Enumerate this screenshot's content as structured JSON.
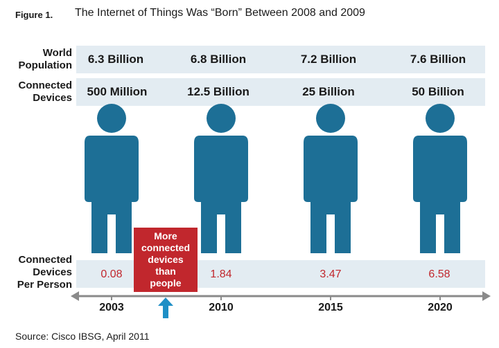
{
  "figure": {
    "label": "Figure 1.",
    "title": "The Internet of Things Was “Born” Between 2008 and 2009"
  },
  "rows": {
    "population_label": [
      "World",
      "Population"
    ],
    "devices_label": [
      "Connected",
      "Devices"
    ],
    "per_person_label": [
      "Connected",
      "Devices",
      "Per Person"
    ]
  },
  "columns": [
    {
      "year": "2003",
      "population": "6.3 Billion",
      "devices": "500 Million",
      "per_person": "0.08"
    },
    {
      "year": "2010",
      "population": "6.8 Billion",
      "devices": "12.5 Billion",
      "per_person": "1.84"
    },
    {
      "year": "2015",
      "population": "7.2 Billion",
      "devices": "25 Billion",
      "per_person": "3.47"
    },
    {
      "year": "2020",
      "population": "7.6 Billion",
      "devices": "50 Billion",
      "per_person": "6.58"
    }
  ],
  "callout": [
    "More",
    "connected",
    "devices",
    "than",
    "people"
  ],
  "source": "Source: Cisco IBSG, April 2011",
  "colors": {
    "person": "#1d6f96",
    "band": "#e3ecf2",
    "accent_red": "#c1272d",
    "timeline": "#8a8a8a",
    "arrow": "#1e8fc6"
  },
  "icons": {
    "person": "person-icon",
    "up_arrow": "up-arrow-icon",
    "timeline": "double-arrow-timeline"
  }
}
